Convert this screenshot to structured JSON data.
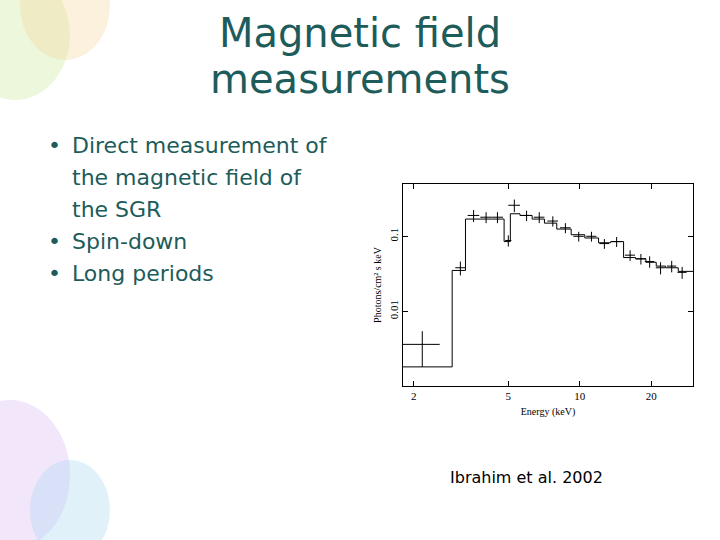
{
  "slide": {
    "title": "Magnetic field measurements",
    "bullets": [
      "Direct measurement of the magnetic field of the SGR",
      "Spin-down",
      "Long periods"
    ],
    "citation": "Ibrahim et al. 2002"
  },
  "chart_data": {
    "type": "scatter",
    "log": true,
    "grid": false,
    "xlabel": "Energy (keV)",
    "ylabel": "Photons/cm² s keV",
    "xlim": [
      1.8,
      30
    ],
    "ylim": [
      0.001,
      0.5
    ],
    "xticks": [
      2,
      5,
      10,
      20
    ],
    "yticks": [
      0.01,
      0.1
    ],
    "color": "#000000",
    "series": [
      {
        "type": "scatter",
        "marker": "cross",
        "x": [
          2.17,
          3.14,
          3.57,
          4.03,
          4.5,
          5.0,
          5.3,
          5.97,
          6.75,
          7.7,
          8.7,
          9.9,
          11.2,
          12.7,
          14.3,
          16.3,
          18.1,
          19.7,
          21.9,
          24.4,
          27
        ],
        "values": [
          0.0036,
          0.038,
          0.19,
          0.18,
          0.18,
          0.088,
          0.26,
          0.19,
          0.18,
          0.16,
          0.13,
          0.1,
          0.1,
          0.08,
          0.085,
          0.056,
          0.05,
          0.046,
          0.038,
          0.04,
          0.033
        ],
        "error_y": [
          0.0018,
          0.008,
          0.035,
          0.03,
          0.03,
          0.015,
          0.05,
          0.03,
          0.03,
          0.025,
          0.02,
          0.015,
          0.015,
          0.012,
          0.013,
          0.009,
          0.008,
          0.008,
          0.007,
          0.007,
          0.006
        ],
        "error_x": [
          0.4,
          0.15,
          0.2,
          0.22,
          0.25,
          0.15,
          0.3,
          0.3,
          0.35,
          0.4,
          0.45,
          0.5,
          0.55,
          0.6,
          0.7,
          0.8,
          0.9,
          0.9,
          1.0,
          1.1,
          1.2
        ]
      },
      {
        "type": "line",
        "line_style": "step",
        "x": [
          1.8,
          2.9,
          3.3,
          3.8,
          4.3,
          4.8,
          5.1,
          5.6,
          6.3,
          7.1,
          8.0,
          9.2,
          10.5,
          12.0,
          13.5,
          15.3,
          17.2,
          19.0,
          21,
          23,
          26,
          30
        ],
        "values": [
          0.0018,
          0.035,
          0.17,
          0.17,
          0.17,
          0.085,
          0.2,
          0.19,
          0.17,
          0.15,
          0.125,
          0.105,
          0.095,
          0.082,
          0.085,
          0.052,
          0.05,
          0.045,
          0.04,
          0.038,
          0.034,
          0.034
        ]
      }
    ]
  }
}
